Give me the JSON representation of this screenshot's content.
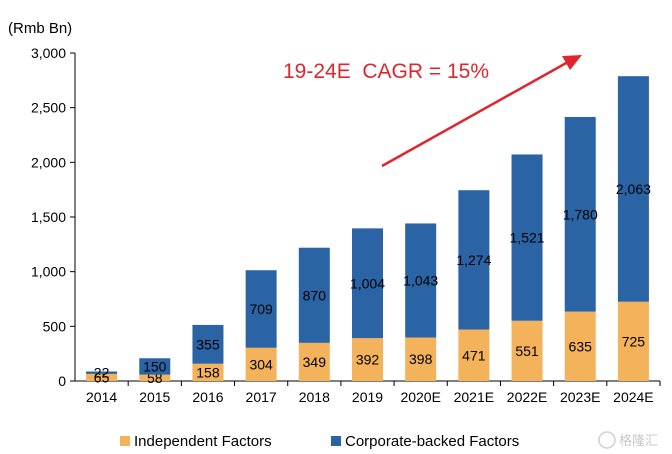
{
  "chart_data": {
    "type": "bar",
    "stacked": true,
    "unit_label": "(Rmb Bn)",
    "categories": [
      "2014",
      "2015",
      "2016",
      "2017",
      "2018",
      "2019",
      "2020E",
      "2021E",
      "2022E",
      "2023E",
      "2024E"
    ],
    "series": [
      {
        "name": "Independent Factors",
        "color": "#f4b25a",
        "values": [
          65,
          58,
          158,
          304,
          349,
          392,
          398,
          471,
          551,
          635,
          725
        ]
      },
      {
        "name": "Corporate-backed Factors",
        "color": "#2a64a4",
        "values": [
          22,
          150,
          355,
          709,
          870,
          1004,
          1043,
          1274,
          1521,
          1780,
          2063
        ]
      }
    ],
    "data_labels": [
      [
        "65",
        "58",
        "158",
        "304",
        "349",
        "392",
        "398",
        "471",
        "551",
        "635",
        "725"
      ],
      [
        "22",
        "150",
        "355",
        "709",
        "870",
        "1,004",
        "1,043",
        "1,274",
        "1,521",
        "1,780",
        "2,063"
      ]
    ],
    "y_ticks": [
      "0",
      "500",
      "1,000",
      "1,500",
      "2,000",
      "2,500",
      "3,000"
    ],
    "ylim": [
      0,
      3000
    ],
    "grid": false,
    "legend_position": "bottom",
    "annotation": {
      "text": "19-24E  CAGR = 15%",
      "color": "#e0262c"
    },
    "watermark": "格隆汇"
  }
}
